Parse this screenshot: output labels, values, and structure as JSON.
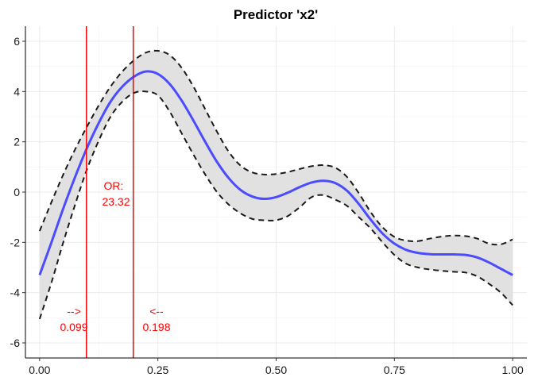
{
  "chart_data": {
    "type": "line",
    "title": "Predictor 'x2'",
    "xlabel": "",
    "ylabel": "",
    "xlim": [
      -0.03,
      1.03
    ],
    "ylim": [
      -6.6,
      6.6
    ],
    "x_ticks": [
      0,
      0.25,
      0.5,
      0.75,
      1
    ],
    "x_tick_labels": [
      "0.00",
      "0.25",
      "0.50",
      "0.75",
      "1.00"
    ],
    "y_ticks": [
      -6,
      -4,
      -2,
      0,
      2,
      4,
      6
    ],
    "y_tick_labels": [
      "-6",
      "-4",
      "-2",
      "0",
      "2",
      "4",
      "6"
    ],
    "grid": true,
    "colors": {
      "fit": "#4b4bff",
      "ci_lines": "#1a1a1a",
      "ci_fill": "#e1e1e1",
      "vline": "#ff0000",
      "annotation": "#ff0000"
    },
    "series": [
      {
        "x": [
          0,
          0.025,
          0.05,
          0.075,
          0.1,
          0.125,
          0.15,
          0.175,
          0.2,
          0.225,
          0.25,
          0.275,
          0.3,
          0.325,
          0.35,
          0.375,
          0.4,
          0.425,
          0.45,
          0.475,
          0.5,
          0.525,
          0.55,
          0.575,
          0.6,
          0.625,
          0.65,
          0.675,
          0.7,
          0.725,
          0.75,
          0.775,
          0.8,
          0.825,
          0.85,
          0.875,
          0.9,
          0.925,
          0.95,
          0.975,
          1
        ],
        "fit": [
          -3.3,
          -2.0,
          -0.65,
          0.6,
          1.75,
          2.75,
          3.6,
          4.2,
          4.6,
          4.8,
          4.7,
          4.3,
          3.65,
          2.85,
          2.0,
          1.2,
          0.55,
          0.08,
          -0.18,
          -0.27,
          -0.2,
          -0.02,
          0.2,
          0.38,
          0.45,
          0.36,
          0.05,
          -0.48,
          -1.1,
          -1.65,
          -2.05,
          -2.3,
          -2.42,
          -2.47,
          -2.48,
          -2.48,
          -2.5,
          -2.6,
          -2.8,
          -3.05,
          -3.3
        ],
        "upper": [
          -1.55,
          -0.4,
          0.7,
          1.7,
          2.6,
          3.45,
          4.2,
          4.8,
          5.25,
          5.55,
          5.62,
          5.45,
          4.95,
          4.2,
          3.3,
          2.4,
          1.6,
          1.05,
          0.78,
          0.7,
          0.72,
          0.8,
          0.92,
          1.03,
          1.07,
          0.97,
          0.6,
          -0.05,
          -0.8,
          -1.4,
          -1.78,
          -1.93,
          -1.95,
          -1.85,
          -1.77,
          -1.73,
          -1.75,
          -1.85,
          -2.05,
          -2.08,
          -1.88
        ],
        "lower": [
          -5.05,
          -3.6,
          -2.0,
          -0.5,
          0.9,
          2.05,
          3.0,
          3.6,
          3.95,
          4.0,
          3.85,
          3.2,
          2.35,
          1.5,
          0.7,
          0.0,
          -0.5,
          -0.85,
          -1.07,
          -1.12,
          -1.12,
          -0.95,
          -0.6,
          -0.2,
          -0.12,
          -0.3,
          -0.55,
          -1.0,
          -1.45,
          -2.0,
          -2.5,
          -2.85,
          -3.0,
          -3.08,
          -3.13,
          -3.17,
          -3.2,
          -3.35,
          -3.65,
          -4.0,
          -4.5
        ]
      }
    ],
    "vlines": [
      0.099,
      0.198
    ],
    "annotations": {
      "left_arrow": "-->",
      "left_value": "0.099",
      "right_arrow": "<--",
      "right_value": "0.198",
      "or_label": "OR:",
      "or_value": "23.32"
    }
  }
}
